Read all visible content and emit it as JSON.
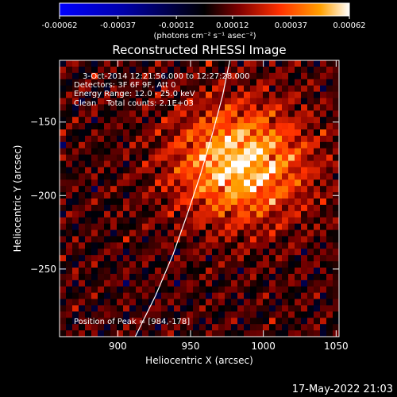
{
  "chart_data": {
    "type": "heatmap",
    "title": "Reconstructed RHESSI Image",
    "xlabel": "Heliocentric X (arcsec)",
    "ylabel": "Heliocentric Y (arcsec)",
    "xlim": [
      860,
      1052
    ],
    "ylim": [
      -296,
      -108
    ],
    "x_ticks": [
      900,
      950,
      1000,
      1050
    ],
    "y_ticks": [
      -150,
      -200,
      -250
    ],
    "colorbar": {
      "min": -0.00062,
      "max": 0.00062,
      "tick_values": [
        -0.00062,
        -0.00037,
        -0.00012,
        0.00012,
        0.00037,
        0.00062
      ],
      "tick_labels": [
        "-0.00062",
        "-0.00037",
        "-0.00012",
        "0.00012",
        "0.00037",
        "0.00062"
      ],
      "units_label": "(photons cm⁻² s⁻¹ asec⁻²)",
      "colors": [
        "#0000ff",
        "#000000",
        "#800000",
        "#ff3000",
        "#ffa000",
        "#ffffff"
      ]
    },
    "annotations": [
      "3-Oct-2014 12:21:56.000 to 12:27:28.000",
      "Detectors: 3F 6F 9F, Att 0",
      "Energy Range: 12.0 - 25.0 keV",
      "Clean    Total counts: 2.1E+03"
    ],
    "peak_label": "Position of Peak = [984,-178]",
    "peak": {
      "x": 984,
      "y": -178
    },
    "limb_points": [
      [
        912,
        -296
      ],
      [
        926,
        -268
      ],
      [
        938,
        -240
      ],
      [
        948,
        -212
      ],
      [
        957,
        -185
      ],
      [
        965,
        -158
      ],
      [
        972,
        -132
      ],
      [
        977,
        -108
      ]
    ],
    "timestamp": "17-May-2022 21:03"
  }
}
